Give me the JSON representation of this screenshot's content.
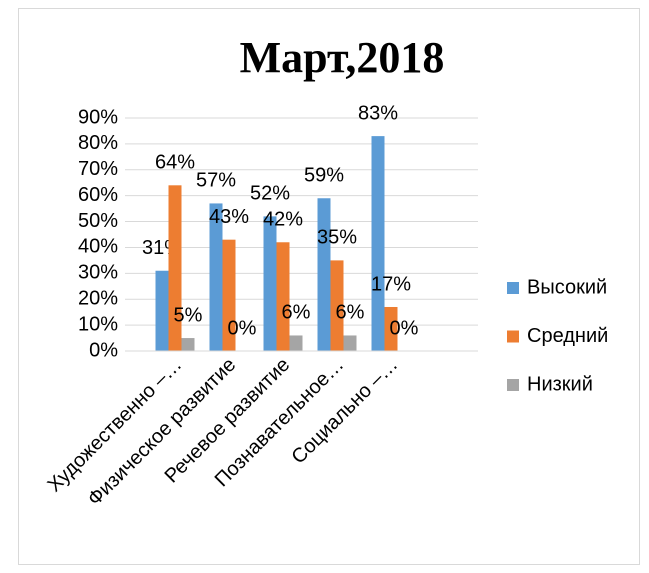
{
  "chart_data": {
    "type": "bar",
    "title": "Март,2018",
    "categories": [
      "Художественно –…",
      "Физическое развитие",
      "Речевое развитие",
      "Познавательное…",
      "Социально –…"
    ],
    "series": [
      {
        "name": "Высокий",
        "color": "#5b9bd5",
        "values": [
          31,
          57,
          52,
          59,
          83
        ],
        "value_labels": [
          "31%",
          "57%",
          "52%",
          "59%",
          "83%"
        ]
      },
      {
        "name": "Средний",
        "color": "#ed7d31",
        "values": [
          64,
          43,
          42,
          35,
          17
        ],
        "value_labels": [
          "64%",
          "43%",
          "42%",
          "35%",
          "17%"
        ]
      },
      {
        "name": "Низкий",
        "color": "#a5a5a5",
        "values": [
          5,
          0,
          6,
          6,
          0
        ],
        "value_labels": [
          "5%",
          "0%",
          "6%",
          "6%",
          "0%"
        ]
      }
    ],
    "ylim": [
      0,
      90
    ],
    "yticks": [
      {
        "value": 0,
        "label": "0%"
      },
      {
        "value": 10,
        "label": "10%"
      },
      {
        "value": 20,
        "label": "20%"
      },
      {
        "value": 30,
        "label": "30%"
      },
      {
        "value": 40,
        "label": "40%"
      },
      {
        "value": 50,
        "label": "50%"
      },
      {
        "value": 60,
        "label": "60%"
      },
      {
        "value": 70,
        "label": "70%"
      },
      {
        "value": 80,
        "label": "80%"
      },
      {
        "value": 90,
        "label": "90%"
      }
    ],
    "grid": true,
    "legend": "right"
  }
}
